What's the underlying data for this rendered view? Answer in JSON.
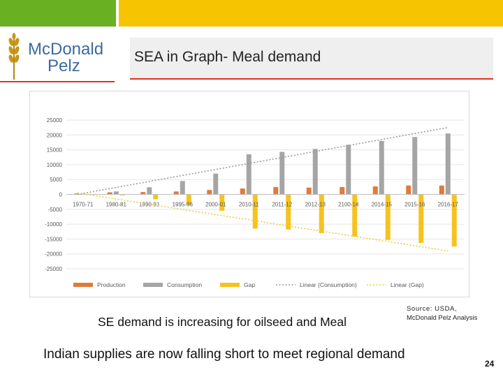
{
  "header": {
    "title": "SEA in Graph- Meal demand",
    "logo_line1": "McDonald",
    "logo_line2": "Pelz",
    "brand_green": "#6ab023",
    "brand_yellow": "#f6c400",
    "accent_red": "#e03020"
  },
  "caption": "SE demand is increasing for oilseed and Meal",
  "source": {
    "line1": "Source: USDA,",
    "line2": "McDonald Pelz Analysis"
  },
  "footer": "Indian supplies are now falling short to meet regional demand",
  "page_number": "24",
  "chart_data": {
    "type": "bar",
    "title": "",
    "xlabel": "",
    "ylabel": "",
    "ylim": [
      -25000,
      25000
    ],
    "yticks": [
      25000,
      20000,
      15000,
      10000,
      5000,
      0,
      -5000,
      -10000,
      -15000,
      -20000,
      -25000
    ],
    "ytick_labels": [
      "25000",
      "20000",
      "15000",
      "10000",
      "5000",
      "0",
      "-5000",
      "-10000",
      "-15000",
      "-20000",
      "-25000"
    ],
    "grid": true,
    "legend_position": "bottom",
    "categories": [
      "1970-71",
      "1980-81",
      "1990-91",
      "1995-96",
      "2000-01",
      "2010-11",
      "2011-12",
      "2012-13",
      "2100-14",
      "2014-15",
      "2015-16",
      "2016-17"
    ],
    "series": [
      {
        "name": "Production",
        "color": "#e07b39",
        "values": [
          300,
          700,
          800,
          1000,
          1500,
          2000,
          2500,
          2300,
          2500,
          2700,
          3000,
          3000
        ]
      },
      {
        "name": "Consumption",
        "color": "#a5a5a5",
        "values": [
          200,
          1000,
          2400,
          4500,
          7000,
          13500,
          14300,
          15300,
          16700,
          18000,
          19300,
          20500
        ]
      },
      {
        "name": "Gap",
        "color": "#f6c21d",
        "values": [
          100,
          -300,
          -1600,
          -3500,
          -5500,
          -11500,
          -11800,
          -13000,
          -14200,
          -15300,
          -16300,
          -17500
        ]
      }
    ],
    "trendlines": [
      {
        "name": "Linear (Consumption)",
        "color": "#9a9a9a",
        "start": 0,
        "end": 22500
      },
      {
        "name": "Linear (Gap)",
        "color": "#e8cf3f",
        "start": 500,
        "end": -19000
      }
    ],
    "legend": [
      "Production",
      "Consumption",
      "Gap",
      "Linear (Consumption)",
      "Linear (Gap)"
    ]
  }
}
